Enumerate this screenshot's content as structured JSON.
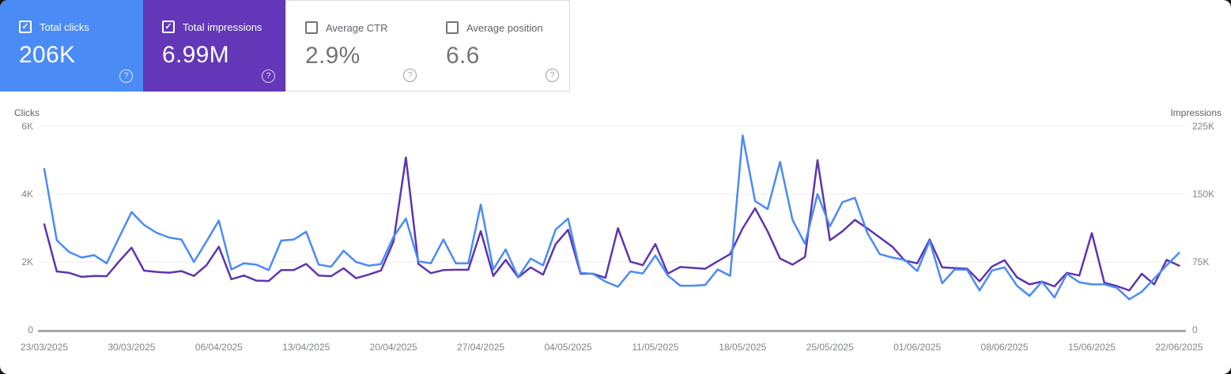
{
  "cards": [
    {
      "label": "Total clicks",
      "value": "206K",
      "checked": true,
      "bg": "#4a8bf5"
    },
    {
      "label": "Total impressions",
      "value": "6.99M",
      "checked": true,
      "bg": "#6337b8"
    },
    {
      "label": "Average CTR",
      "value": "2.9%",
      "checked": false,
      "bg": "#ffffff"
    },
    {
      "label": "Average position",
      "value": "6.6",
      "checked": false,
      "bg": "#ffffff"
    }
  ],
  "help_icon_glyph": "?",
  "checkmark_glyph": "✓",
  "chart_data": {
    "type": "line",
    "x_start_date": "23/03/2025",
    "x_end_date": "22/06/2025",
    "frequency": "daily",
    "categories": [
      "23/03/2025",
      "30/03/2025",
      "06/04/2025",
      "13/04/2025",
      "20/04/2025",
      "27/04/2025",
      "04/05/2025",
      "11/05/2025",
      "18/05/2025",
      "25/05/2025",
      "01/06/2025",
      "08/06/2025",
      "15/06/2025",
      "22/06/2025"
    ],
    "left_axis": {
      "title": "Clicks",
      "ticks": [
        "6K",
        "4K",
        "2K",
        "0"
      ],
      "min": 0,
      "max": 6000
    },
    "right_axis": {
      "title": "Impressions",
      "ticks": [
        "225K",
        "150K",
        "75K",
        "0"
      ],
      "min": 0,
      "max": 225000
    },
    "grid": "horizontal",
    "legend_position": "none",
    "series": [
      {
        "name": "Clicks",
        "axis": "left",
        "color": "#4a8bf5",
        "values": [
          4740,
          2640,
          2290,
          2130,
          2200,
          1960,
          2720,
          3470,
          3090,
          2860,
          2720,
          2660,
          2000,
          2600,
          3220,
          1780,
          1960,
          1920,
          1760,
          2630,
          2660,
          2890,
          1920,
          1860,
          2330,
          2000,
          1890,
          1940,
          2740,
          3280,
          2020,
          1960,
          2660,
          1960,
          1960,
          3690,
          1780,
          2370,
          1550,
          2100,
          1900,
          2950,
          3280,
          1680,
          1650,
          1420,
          1270,
          1720,
          1660,
          2190,
          1600,
          1300,
          1300,
          1320,
          1780,
          1590,
          5730,
          3790,
          3560,
          4950,
          3240,
          2540,
          4000,
          3050,
          3760,
          3890,
          2850,
          2230,
          2130,
          2060,
          1730,
          2620,
          1370,
          1780,
          1770,
          1160,
          1750,
          1840,
          1300,
          1000,
          1420,
          950,
          1650,
          1400,
          1340,
          1340,
          1240,
          900,
          1120,
          1510,
          1900,
          2270
        ]
      },
      {
        "name": "Impressions",
        "axis": "right",
        "color": "#5e35b1",
        "values": [
          116600,
          64500,
          63000,
          58500,
          59600,
          59300,
          75600,
          90800,
          65400,
          64000,
          63100,
          64900,
          59600,
          71300,
          91800,
          55900,
          60000,
          54400,
          54000,
          66000,
          66000,
          72800,
          60000,
          59300,
          68000,
          57000,
          61000,
          65600,
          97500,
          190500,
          72800,
          62600,
          66000,
          66400,
          66400,
          109100,
          59600,
          77300,
          58000,
          69000,
          61000,
          94500,
          110600,
          62000,
          62000,
          57500,
          112300,
          75300,
          71500,
          94800,
          62200,
          69400,
          68500,
          67500,
          75800,
          83600,
          112100,
          134300,
          108800,
          78800,
          72000,
          80600,
          187500,
          99000,
          108800,
          121500,
          112100,
          102000,
          91900,
          76500,
          73500,
          99800,
          69000,
          68300,
          67500,
          53600,
          70000,
          76900,
          58000,
          50200,
          53300,
          48000,
          63000,
          60000,
          106900,
          52100,
          48400,
          43500,
          61900,
          50200,
          77300,
          70900
        ]
      }
    ]
  },
  "colors": {
    "grid": "#ececec",
    "axis_line": "#a9a9a9",
    "tick_text": "#80868b"
  }
}
